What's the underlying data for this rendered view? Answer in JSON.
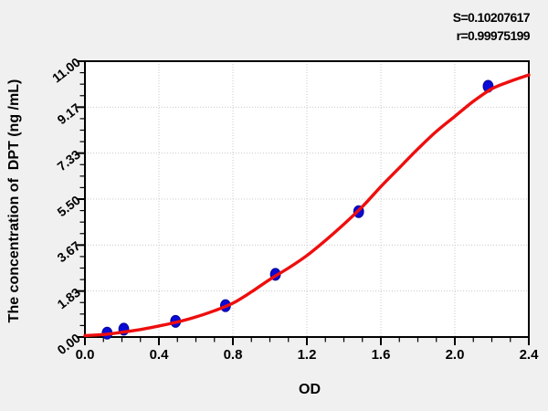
{
  "annotations": {
    "s_label": "S=0.10207617",
    "r_label": "r=0.99975199"
  },
  "chart_data": {
    "type": "scatter",
    "title": "",
    "xlabel": "OD",
    "ylabel": "The concentration of  DPT (ng /mL)",
    "xlim": [
      0.0,
      2.4
    ],
    "ylim": [
      0.0,
      11.0
    ],
    "x_major_ticks": [
      0.0,
      0.4,
      0.8,
      1.2,
      1.6,
      2.0,
      2.4
    ],
    "x_tick_labels": [
      "0.0",
      "0.4",
      "0.8",
      "1.2",
      "1.6",
      "2.0",
      "2.4"
    ],
    "x_minor_step": 0.1,
    "y_major_ticks": [
      0.0,
      1.8333,
      3.6667,
      5.5,
      7.3333,
      9.1667,
      11.0
    ],
    "y_tick_labels": [
      "0.00",
      "1.83",
      "3.67",
      "5.50",
      "7.33",
      "9.17",
      "11.00"
    ],
    "y_minor_divisions": 4,
    "grid": {
      "style": "dotted",
      "at_major_ticks": true
    },
    "legend": null,
    "stats": {
      "S": "0.10207617",
      "r": "0.99975199"
    },
    "series": [
      {
        "name": "standard points",
        "type": "scatter",
        "marker": "ellipse",
        "color": "#0a0ad6",
        "points": [
          {
            "x": 0.12,
            "y": 0.156
          },
          {
            "x": 0.21,
            "y": 0.3125
          },
          {
            "x": 0.49,
            "y": 0.625
          },
          {
            "x": 0.76,
            "y": 1.25
          },
          {
            "x": 1.03,
            "y": 2.5
          },
          {
            "x": 1.48,
            "y": 5.0
          },
          {
            "x": 2.18,
            "y": 10.0
          }
        ]
      },
      {
        "name": "fitted sigmoid curve",
        "type": "line",
        "color": "#ee0e0e",
        "points": [
          {
            "x": 0.0,
            "y": 0.06
          },
          {
            "x": 0.1,
            "y": 0.1
          },
          {
            "x": 0.2,
            "y": 0.19
          },
          {
            "x": 0.3,
            "y": 0.3
          },
          {
            "x": 0.4,
            "y": 0.44
          },
          {
            "x": 0.5,
            "y": 0.6
          },
          {
            "x": 0.6,
            "y": 0.8
          },
          {
            "x": 0.7,
            "y": 1.05
          },
          {
            "x": 0.8,
            "y": 1.35
          },
          {
            "x": 0.9,
            "y": 1.8
          },
          {
            "x": 1.0,
            "y": 2.3
          },
          {
            "x": 1.1,
            "y": 2.75
          },
          {
            "x": 1.2,
            "y": 3.25
          },
          {
            "x": 1.3,
            "y": 3.85
          },
          {
            "x": 1.4,
            "y": 4.5
          },
          {
            "x": 1.5,
            "y": 5.2
          },
          {
            "x": 1.6,
            "y": 6.0
          },
          {
            "x": 1.7,
            "y": 6.75
          },
          {
            "x": 1.8,
            "y": 7.5
          },
          {
            "x": 1.9,
            "y": 8.2
          },
          {
            "x": 2.0,
            "y": 8.8
          },
          {
            "x": 2.1,
            "y": 9.4
          },
          {
            "x": 2.2,
            "y": 9.9
          },
          {
            "x": 2.3,
            "y": 10.2
          },
          {
            "x": 2.4,
            "y": 10.45
          }
        ]
      }
    ]
  },
  "colors": {
    "background": "#f0f0f0",
    "plot_background": "#ffffff",
    "frame": "#000000",
    "curve": "#ee0e0e",
    "points_fill": "#0a0ad6",
    "points_stroke": "#050597",
    "grid": "#c9c9c9",
    "text": "#000000"
  }
}
